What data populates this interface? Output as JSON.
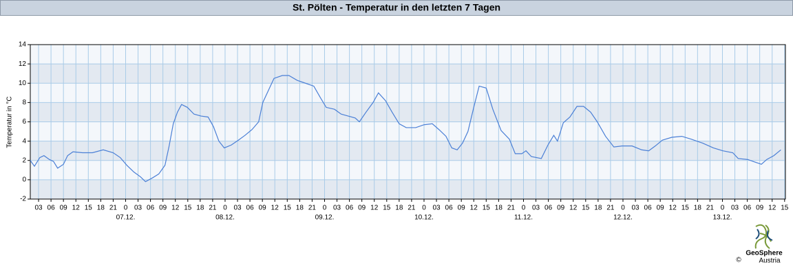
{
  "chart_data": {
    "type": "line",
    "title": "St. Pölten - Temperatur in den letzten 7 Tagen",
    "y_label": "Temperatur in °C",
    "x": [
      1,
      2,
      3.3,
      4.3,
      5.6,
      6.6,
      7.6,
      9,
      10,
      11.3,
      13.6,
      16,
      18.6,
      21,
      22.7,
      24.3,
      26,
      27.6,
      28.8,
      30.5,
      32,
      33.5,
      34.5,
      35.5,
      36.5,
      37.5,
      38.9,
      40.5,
      42.2,
      43.9,
      45.2,
      46.5,
      47.8,
      49.5,
      51.2,
      52.8,
      54.5,
      56.1,
      57.1,
      58.5,
      59.8,
      61.8,
      63.4,
      65.4,
      67.4,
      69.4,
      71,
      72.4,
      74.4,
      76,
      77.7,
      79.4,
      80.4,
      82,
      83.7,
      85,
      86.7,
      88.3,
      90,
      91.7,
      94,
      96,
      98,
      99.6,
      101.3,
      102.7,
      104,
      105.3,
      106.6,
      108,
      109.3,
      111,
      112.6,
      114.6,
      116.6,
      118,
      119.6,
      120.6,
      121.9,
      124.3,
      125.9,
      127.3,
      128.2,
      129.6,
      131.2,
      132.9,
      134.5,
      136.2,
      137.8,
      139.8,
      141.8,
      143.8,
      146.2,
      148.5,
      150.2,
      151.8,
      153.5,
      155.8,
      158.2,
      160.5,
      163.2,
      165.8,
      168.1,
      170.5,
      171.8,
      174.1,
      175.4,
      177.4,
      178.7,
      180.4,
      182.1
    ],
    "series": [
      {
        "name": "Temperatur",
        "color": "#4a7fd6",
        "values": [
          2.0,
          1.4,
          2.3,
          2.5,
          2.1,
          1.9,
          1.2,
          1.6,
          2.5,
          2.9,
          2.8,
          2.8,
          3.1,
          2.8,
          2.3,
          1.5,
          0.8,
          0.3,
          -0.2,
          0.2,
          0.6,
          1.5,
          3.5,
          5.8,
          7.0,
          7.8,
          7.5,
          6.8,
          6.6,
          6.5,
          5.5,
          4.0,
          3.3,
          3.6,
          4.1,
          4.6,
          5.2,
          6.0,
          8.0,
          9.3,
          10.5,
          10.8,
          10.8,
          10.3,
          10.0,
          9.7,
          8.5,
          7.5,
          7.3,
          6.8,
          6.6,
          6.4,
          6.0,
          7.0,
          8.0,
          9.0,
          8.2,
          7.0,
          5.8,
          5.4,
          5.4,
          5.7,
          5.8,
          5.2,
          4.5,
          3.3,
          3.1,
          3.8,
          5.0,
          7.5,
          9.7,
          9.5,
          7.3,
          5.1,
          4.2,
          2.7,
          2.7,
          3.0,
          2.4,
          2.2,
          3.6,
          4.6,
          4.0,
          5.9,
          6.5,
          7.6,
          7.6,
          7.0,
          6.0,
          4.5,
          3.4,
          3.5,
          3.5,
          3.1,
          3.0,
          3.5,
          4.1,
          4.4,
          4.5,
          4.2,
          3.8,
          3.3,
          3.0,
          2.8,
          2.2,
          2.1,
          1.9,
          1.6,
          2.1,
          2.5,
          3.1
        ]
      }
    ],
    "xlim": [
      1,
      183.2
    ],
    "xticks": [
      {
        "value": 3,
        "label": "03"
      },
      {
        "value": 6,
        "label": "06"
      },
      {
        "value": 9,
        "label": "09"
      },
      {
        "value": 12,
        "label": "12"
      },
      {
        "value": 15,
        "label": "15"
      },
      {
        "value": 18,
        "label": "18"
      },
      {
        "value": 21,
        "label": "21"
      },
      {
        "value": 24,
        "label": "0"
      },
      {
        "value": 27,
        "label": "03"
      },
      {
        "value": 30,
        "label": "06"
      },
      {
        "value": 33,
        "label": "09"
      },
      {
        "value": 36,
        "label": "12"
      },
      {
        "value": 39,
        "label": "15"
      },
      {
        "value": 42,
        "label": "18"
      },
      {
        "value": 45,
        "label": "21"
      },
      {
        "value": 48,
        "label": "0"
      },
      {
        "value": 51,
        "label": "03"
      },
      {
        "value": 54,
        "label": "06"
      },
      {
        "value": 57,
        "label": "09"
      },
      {
        "value": 60,
        "label": "12"
      },
      {
        "value": 63,
        "label": "15"
      },
      {
        "value": 66,
        "label": "18"
      },
      {
        "value": 69,
        "label": "21"
      },
      {
        "value": 72,
        "label": "0"
      },
      {
        "value": 75,
        "label": "03"
      },
      {
        "value": 78,
        "label": "06"
      },
      {
        "value": 81,
        "label": "09"
      },
      {
        "value": 84,
        "label": "12"
      },
      {
        "value": 87,
        "label": "15"
      },
      {
        "value": 90,
        "label": "18"
      },
      {
        "value": 93,
        "label": "21"
      },
      {
        "value": 96,
        "label": "0"
      },
      {
        "value": 99,
        "label": "03"
      },
      {
        "value": 102,
        "label": "06"
      },
      {
        "value": 105,
        "label": "09"
      },
      {
        "value": 108,
        "label": "12"
      },
      {
        "value": 111,
        "label": "15"
      },
      {
        "value": 114,
        "label": "18"
      },
      {
        "value": 117,
        "label": "21"
      },
      {
        "value": 120,
        "label": "0"
      },
      {
        "value": 123,
        "label": "03"
      },
      {
        "value": 126,
        "label": "06"
      },
      {
        "value": 129,
        "label": "09"
      },
      {
        "value": 132,
        "label": "12"
      },
      {
        "value": 135,
        "label": "15"
      },
      {
        "value": 138,
        "label": "18"
      },
      {
        "value": 141,
        "label": "21"
      },
      {
        "value": 144,
        "label": "0"
      },
      {
        "value": 147,
        "label": "03"
      },
      {
        "value": 150,
        "label": "06"
      },
      {
        "value": 153,
        "label": "09"
      },
      {
        "value": 156,
        "label": "12"
      },
      {
        "value": 159,
        "label": "15"
      },
      {
        "value": 162,
        "label": "18"
      },
      {
        "value": 165,
        "label": "21"
      },
      {
        "value": 168,
        "label": "0"
      },
      {
        "value": 171,
        "label": "03"
      },
      {
        "value": 174,
        "label": "06"
      },
      {
        "value": 177,
        "label": "09"
      },
      {
        "value": 180,
        "label": "12"
      },
      {
        "value": 183,
        "label": "15"
      }
    ],
    "day_labels": [
      {
        "value": 24,
        "label": "07.12."
      },
      {
        "value": 48,
        "label": "08.12."
      },
      {
        "value": 72,
        "label": "09.12."
      },
      {
        "value": 96,
        "label": "10.12."
      },
      {
        "value": 120,
        "label": "11.12."
      },
      {
        "value": 144,
        "label": "12.12."
      },
      {
        "value": 168,
        "label": "13.12."
      }
    ],
    "ylim": [
      -2,
      14
    ],
    "yticks": [
      -2,
      0,
      2,
      4,
      6,
      8,
      10,
      12,
      14
    ],
    "grid": true,
    "logo": {
      "name": "GeoSphere",
      "sub": "Austria",
      "copyright": "©"
    }
  }
}
